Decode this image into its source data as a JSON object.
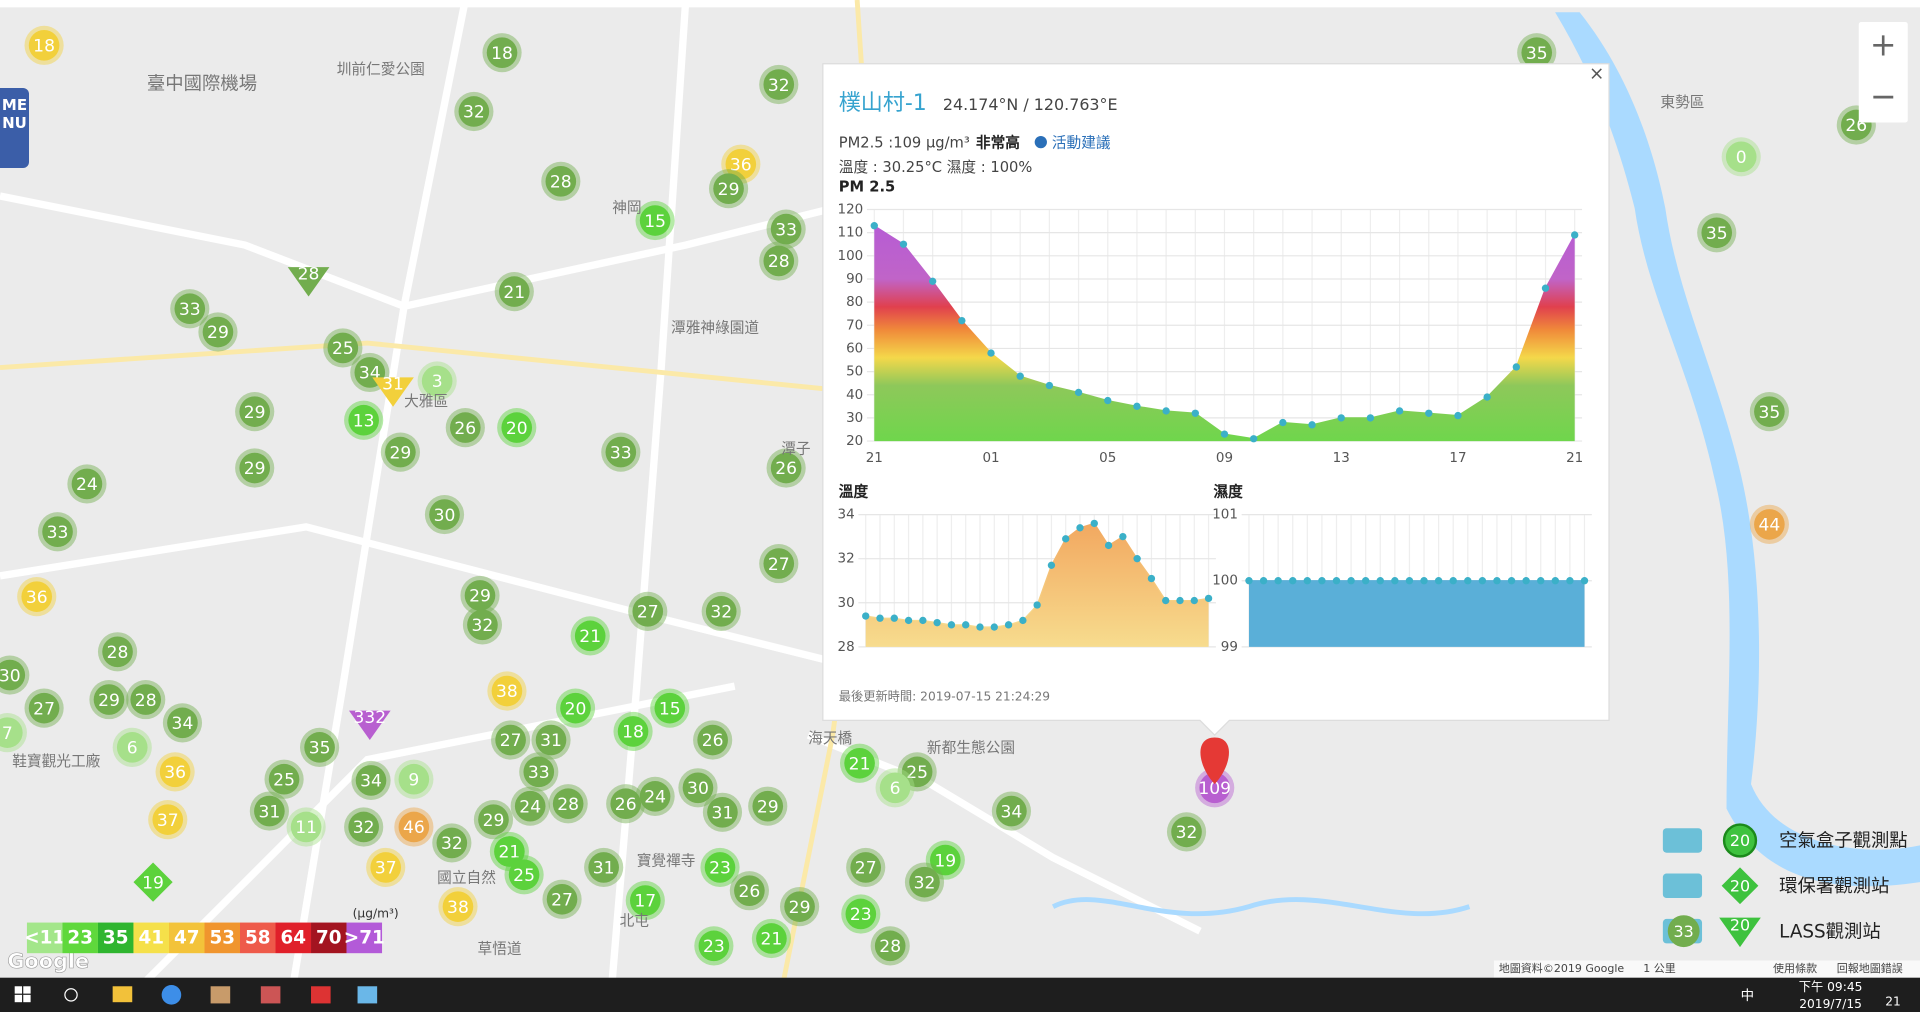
{
  "menu": "MENU",
  "zoom": [
    "+",
    "−"
  ],
  "map_labels": [
    "臺中國際機場",
    "圳前仁愛公園",
    "神岡",
    "潭雅神綠園道",
    "東勢區",
    "新都生態公園",
    "海天橋",
    "北屯",
    "國立自然",
    "草悟道",
    "寶覺禪寺",
    "鞋寶觀光工廠",
    "大雅區",
    "潭子"
  ],
  "map_markers": [
    18,
    18,
    32,
    32,
    28,
    15,
    36,
    29,
    33,
    28,
    21,
    33,
    29,
    25,
    34,
    3,
    13,
    29,
    26,
    20,
    33,
    29,
    29,
    24,
    33,
    36,
    30,
    29,
    32,
    21,
    27,
    32,
    27,
    26,
    28,
    29,
    28,
    34,
    27,
    6,
    36,
    37,
    35,
    25,
    31,
    11,
    32,
    34,
    9,
    46,
    37,
    32,
    38,
    38,
    20,
    27,
    31,
    18,
    15,
    26,
    33,
    28,
    24,
    29,
    21,
    25,
    26,
    30,
    31,
    29,
    24,
    31,
    23,
    17,
    27,
    26,
    29,
    23,
    21,
    27,
    21,
    25,
    6,
    19,
    32,
    23,
    28,
    34,
    32,
    109,
    35,
    35,
    0,
    35,
    44,
    26,
    30,
    7,
    28,
    332,
    31,
    19
  ],
  "popup": {
    "close": "×",
    "title": "樸山村-1",
    "coords": "24.174°N / 120.763°E",
    "pm_text": "PM2.5 :109 μg/m³",
    "level": "非常高",
    "advice": "活動建議",
    "temp_hum": "溫度 : 30.25°C 濕度 : 100%",
    "last_update": "最後更新時間: 2019-07-15 21:24:29",
    "pm_chart": {
      "type": "line",
      "title": "PM 2.5",
      "categories": [
        "21",
        null,
        null,
        null,
        "01",
        null,
        null,
        null,
        "05",
        null,
        null,
        null,
        "09",
        null,
        null,
        null,
        "13",
        null,
        null,
        null,
        "17",
        null,
        null,
        null,
        "21"
      ],
      "values": [
        113,
        105,
        89,
        72,
        58,
        48,
        44,
        41,
        37.5,
        35,
        33,
        32,
        23,
        21,
        28,
        27,
        30,
        30,
        33,
        32,
        31,
        39,
        52,
        86,
        109
      ],
      "ylim": [
        20,
        120
      ],
      "yticks": [
        20,
        30,
        40,
        50,
        60,
        70,
        80,
        90,
        100,
        110,
        120
      ],
      "grid": true,
      "color": "#3bb0c8"
    },
    "temp_chart": {
      "type": "area",
      "title": "溫度",
      "values": [
        29.4,
        29.3,
        29.3,
        29.2,
        29.2,
        29.1,
        29.0,
        29.0,
        28.9,
        28.9,
        29.0,
        29.2,
        29.9,
        31.7,
        32.9,
        33.4,
        33.6,
        32.6,
        33.0,
        32.0,
        31.1,
        30.1,
        30.1,
        30.1,
        30.2
      ],
      "ylim": [
        28,
        34
      ],
      "yticks": [
        28,
        30,
        32,
        34
      ],
      "grid": true,
      "color": "#3bb0c8"
    },
    "hum_chart": {
      "type": "area",
      "title": "濕度",
      "values": [
        100,
        100,
        100,
        100,
        100,
        100,
        100,
        100,
        100,
        100,
        100,
        100,
        100,
        100,
        100,
        100,
        100,
        100,
        100,
        100,
        100,
        100,
        100,
        100
      ],
      "ylim": [
        99,
        101
      ],
      "yticks": [
        99,
        100,
        101
      ],
      "grid": true,
      "color": "#3bb0c8"
    }
  },
  "scale": {
    "items": [
      {
        "label": "<11",
        "color": "#a3e68a"
      },
      {
        "label": 23,
        "color": "#5fd83c"
      },
      {
        "label": 35,
        "color": "#2fb52f"
      },
      {
        "label": 41,
        "color": "#f5e04a"
      },
      {
        "label": 47,
        "color": "#f3c33a"
      },
      {
        "label": 53,
        "color": "#f0952e"
      },
      {
        "label": 58,
        "color": "#ee5a4a"
      },
      {
        "label": 64,
        "color": "#e0202a"
      },
      {
        "label": 70,
        "color": "#a31420"
      },
      {
        "label": ">71",
        "color": "#b35ad8"
      }
    ],
    "unit": "(μg/m³)"
  },
  "legend": [
    {
      "label": "空氣盒子觀測點",
      "icon": 20
    },
    {
      "label": "環保署觀測站",
      "icon": 20
    },
    {
      "label": "LASS觀測站",
      "icon": 20,
      "badge": 33
    }
  ],
  "google": "Google",
  "footer": [
    "地圖資料©2019 Google",
    "1 公里",
    "使用條款",
    "回報地圖錯誤"
  ],
  "taskbar": {
    "ime": "中",
    "time": "下午 09:45",
    "date": "2019/7/15",
    "notify": 21
  }
}
